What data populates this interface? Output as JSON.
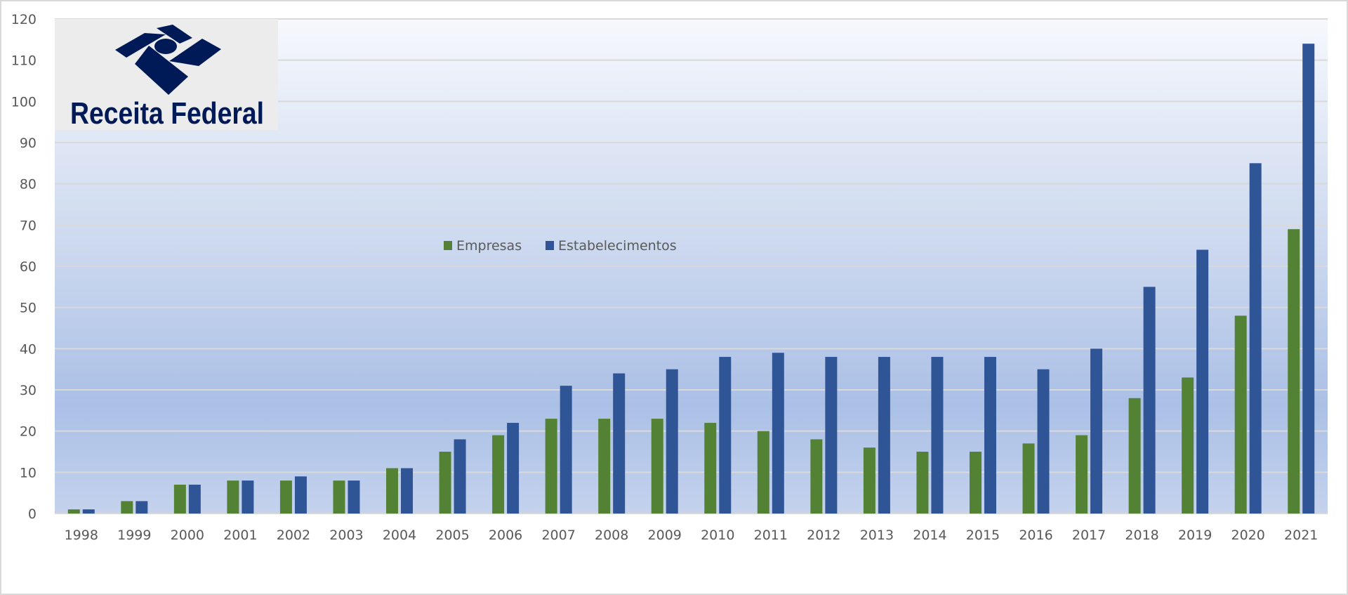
{
  "logo": {
    "text": "Receita Federal",
    "color": "#001a57"
  },
  "chart_data": {
    "type": "bar",
    "title": "",
    "xlabel": "",
    "ylabel": "",
    "ylim": [
      0,
      120
    ],
    "yticks": [
      0,
      10,
      20,
      30,
      40,
      50,
      60,
      70,
      80,
      90,
      100,
      110,
      120
    ],
    "grid": true,
    "legend": "center",
    "categories": [
      "1998",
      "1999",
      "2000",
      "2001",
      "2002",
      "2003",
      "2004",
      "2005",
      "2006",
      "2007",
      "2008",
      "2009",
      "2010",
      "2011",
      "2012",
      "2013",
      "2014",
      "2015",
      "2016",
      "2017",
      "2018",
      "2019",
      "2020",
      "2021"
    ],
    "series": [
      {
        "name": "Empresas",
        "color": "#548235",
        "values": [
          1,
          3,
          7,
          8,
          8,
          8,
          11,
          15,
          19,
          23,
          23,
          23,
          22,
          20,
          18,
          16,
          15,
          15,
          17,
          19,
          28,
          33,
          48,
          69
        ]
      },
      {
        "name": "Estabelecimentos",
        "color": "#2f5597",
        "values": [
          1,
          3,
          7,
          8,
          9,
          8,
          11,
          18,
          22,
          31,
          34,
          35,
          38,
          39,
          38,
          38,
          38,
          38,
          35,
          40,
          55,
          64,
          85,
          114
        ]
      }
    ]
  }
}
